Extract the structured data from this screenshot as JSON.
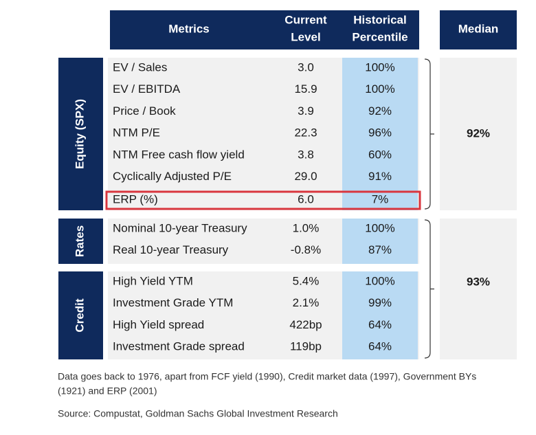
{
  "header": {
    "metrics": "Metrics",
    "current_level": [
      "Current",
      "Level"
    ],
    "historical_percentile": [
      "Historical",
      "Percentile"
    ],
    "median": "Median"
  },
  "groups": [
    {
      "label": "Equity (SPX)",
      "rows": [
        [
          "EV / Sales",
          "3.0",
          "100%"
        ],
        [
          "EV / EBITDA",
          "15.9",
          "100%"
        ],
        [
          "Price / Book",
          "3.9",
          "92%"
        ],
        [
          "NTM P/E",
          "22.3",
          "96%"
        ],
        [
          "NTM Free cash flow yield",
          "3.8",
          "60%"
        ],
        [
          "Cyclically Adjusted P/E",
          "29.0",
          "91%"
        ],
        [
          "ERP (%)",
          "6.0",
          "7%"
        ]
      ]
    },
    {
      "label": "Rates",
      "rows": [
        [
          "Nominal 10-year Treasury",
          "1.0%",
          "100%"
        ],
        [
          "Real 10-year Treasury",
          "-0.8%",
          "87%"
        ]
      ]
    },
    {
      "label": "Credit",
      "rows": [
        [
          "High Yield YTM",
          "5.4%",
          "100%"
        ],
        [
          "Investment Grade YTM",
          "2.1%",
          "99%"
        ],
        [
          "High Yield spread",
          "422bp",
          "64%"
        ],
        [
          "Investment Grade spread",
          "119bp",
          "64%"
        ]
      ]
    }
  ],
  "medians": [
    "92%",
    "93%"
  ],
  "notes": [
    "Data goes back to 1976, apart from FCF yield (1990), Credit market data (1997), Government BYs",
    "(1921) and ERP (2001)",
    "Source: Compustat, Goldman Sachs Global Investment Research"
  ]
}
